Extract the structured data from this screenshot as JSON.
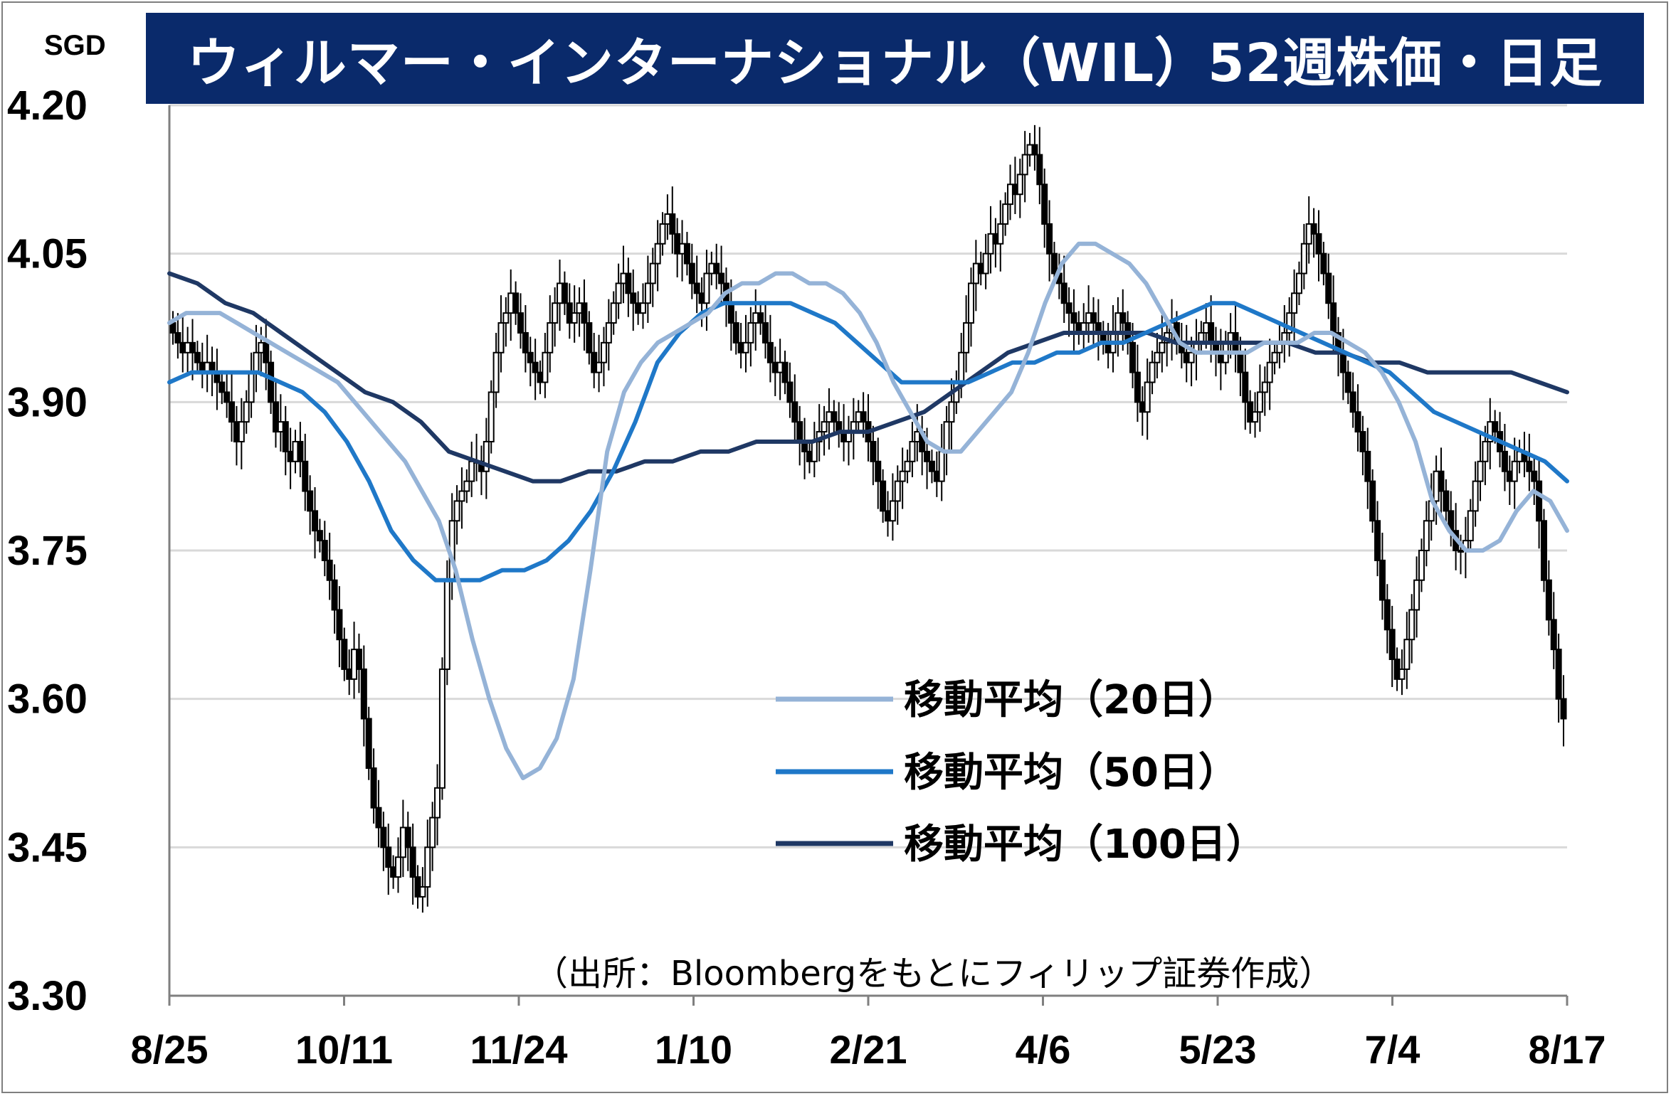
{
  "title": "ウィルマー・インターナショナル（WIL）52週株価・日足",
  "unit": "SGD",
  "source_note": "（出所：Bloombergをもとにフィリップ証券作成）",
  "colors": {
    "title_bg": "#0a2a6b",
    "ma20": "#95b3d7",
    "ma50": "#1f78c8",
    "ma100": "#1f3864",
    "candle": "#000000",
    "grid": "#d9d9d9"
  },
  "chart_data": {
    "type": "candlestick",
    "title": "ウィルマー・インターナショナル（WIL）52週株価・日足",
    "ylabel": "SGD",
    "ylim": [
      3.3,
      4.2
    ],
    "yticks": [
      "4.20",
      "4.05",
      "3.90",
      "3.75",
      "3.60",
      "3.45",
      "3.30"
    ],
    "xticks": [
      "8/25",
      "10/11",
      "11/24",
      "1/10",
      "2/21",
      "4/6",
      "5/23",
      "7/4",
      "8/17"
    ],
    "grid": true,
    "legend_position": "bottom-right",
    "legend": [
      "移動平均（20日）",
      "移動平均（50日）",
      "移動平均（100日）"
    ],
    "close": [
      3.97,
      3.96,
      3.95,
      3.96,
      3.95,
      3.94,
      3.93,
      3.94,
      3.93,
      3.92,
      3.91,
      3.9,
      3.88,
      3.86,
      3.88,
      3.9,
      3.93,
      3.95,
      3.96,
      3.94,
      3.9,
      3.87,
      3.88,
      3.85,
      3.84,
      3.86,
      3.84,
      3.81,
      3.79,
      3.77,
      3.76,
      3.74,
      3.72,
      3.69,
      3.66,
      3.63,
      3.62,
      3.65,
      3.63,
      3.58,
      3.53,
      3.49,
      3.47,
      3.45,
      3.43,
      3.42,
      3.44,
      3.47,
      3.45,
      3.42,
      3.4,
      3.41,
      3.45,
      3.48,
      3.51,
      3.63,
      3.72,
      3.78,
      3.8,
      3.81,
      3.82,
      3.84,
      3.84,
      3.83,
      3.86,
      3.91,
      3.95,
      3.98,
      3.99,
      4.01,
      3.99,
      3.97,
      3.95,
      3.94,
      3.93,
      3.92,
      3.95,
      3.98,
      4.0,
      4.02,
      4.0,
      3.98,
      3.99,
      4.0,
      3.98,
      3.95,
      3.93,
      3.94,
      3.96,
      3.98,
      4.0,
      4.02,
      4.03,
      4.01,
      4.0,
      3.99,
      4.0,
      4.02,
      4.04,
      4.06,
      4.08,
      4.09,
      4.07,
      4.05,
      4.06,
      4.04,
      4.02,
      4.01,
      4.0,
      4.03,
      4.04,
      4.03,
      4.02,
      4.0,
      3.98,
      3.96,
      3.95,
      3.96,
      3.98,
      3.99,
      3.98,
      3.96,
      3.94,
      3.93,
      3.94,
      3.92,
      3.9,
      3.88,
      3.86,
      3.85,
      3.84,
      3.86,
      3.87,
      3.88,
      3.89,
      3.88,
      3.87,
      3.86,
      3.87,
      3.88,
      3.89,
      3.88,
      3.86,
      3.84,
      3.82,
      3.79,
      3.78,
      3.8,
      3.82,
      3.83,
      3.84,
      3.86,
      3.87,
      3.85,
      3.84,
      3.83,
      3.82,
      3.85,
      3.88,
      3.9,
      3.92,
      3.95,
      3.98,
      4.02,
      4.04,
      4.03,
      4.05,
      4.07,
      4.06,
      4.08,
      4.1,
      4.12,
      4.11,
      4.13,
      4.15,
      4.16,
      4.15,
      4.12,
      4.08,
      4.05,
      4.03,
      4.02,
      4.0,
      3.99,
      3.98,
      3.97,
      3.98,
      3.99,
      3.98,
      3.97,
      3.96,
      3.95,
      3.97,
      3.99,
      3.98,
      3.96,
      3.93,
      3.9,
      3.89,
      3.92,
      3.94,
      3.95,
      3.96,
      3.97,
      3.98,
      3.96,
      3.95,
      3.94,
      3.95,
      3.96,
      3.97,
      3.98,
      3.96,
      3.95,
      3.94,
      3.96,
      3.97,
      3.95,
      3.93,
      3.9,
      3.88,
      3.89,
      3.91,
      3.92,
      3.94,
      3.95,
      3.96,
      3.97,
      3.99,
      4.01,
      4.03,
      4.06,
      4.08,
      4.07,
      4.05,
      4.03,
      4.0,
      3.97,
      3.95,
      3.93,
      3.91,
      3.89,
      3.87,
      3.85,
      3.82,
      3.78,
      3.74,
      3.7,
      3.67,
      3.64,
      3.62,
      3.63,
      3.66,
      3.69,
      3.72,
      3.75,
      3.78,
      3.8,
      3.83,
      3.81,
      3.79,
      3.77,
      3.75,
      3.75,
      3.76,
      3.79,
      3.82,
      3.84,
      3.86,
      3.88,
      3.87,
      3.85,
      3.83,
      3.82,
      3.84,
      3.85,
      3.84,
      3.83,
      3.82,
      3.78,
      3.72,
      3.68,
      3.65,
      3.6,
      3.58
    ],
    "ma20": [
      3.98,
      3.99,
      3.99,
      3.99,
      3.98,
      3.97,
      3.96,
      3.95,
      3.94,
      3.93,
      3.92,
      3.9,
      3.88,
      3.86,
      3.84,
      3.81,
      3.78,
      3.73,
      3.66,
      3.6,
      3.55,
      3.52,
      3.53,
      3.56,
      3.62,
      3.73,
      3.85,
      3.91,
      3.94,
      3.96,
      3.97,
      3.98,
      3.99,
      4.01,
      4.02,
      4.02,
      4.03,
      4.03,
      4.02,
      4.02,
      4.01,
      3.99,
      3.96,
      3.92,
      3.89,
      3.86,
      3.85,
      3.85,
      3.87,
      3.89,
      3.91,
      3.95,
      4.0,
      4.04,
      4.06,
      4.06,
      4.05,
      4.04,
      4.02,
      3.99,
      3.96,
      3.95,
      3.95,
      3.95,
      3.95,
      3.96,
      3.96,
      3.96,
      3.97,
      3.97,
      3.96,
      3.95,
      3.93,
      3.9,
      3.86,
      3.8,
      3.77,
      3.75,
      3.75,
      3.76,
      3.79,
      3.81,
      3.8,
      3.77
    ],
    "ma50": [
      3.92,
      3.93,
      3.93,
      3.93,
      3.93,
      3.92,
      3.91,
      3.89,
      3.86,
      3.82,
      3.77,
      3.74,
      3.72,
      3.72,
      3.72,
      3.73,
      3.73,
      3.74,
      3.76,
      3.79,
      3.83,
      3.88,
      3.94,
      3.97,
      3.99,
      4.0,
      4.0,
      4.0,
      4.0,
      3.99,
      3.98,
      3.96,
      3.94,
      3.92,
      3.92,
      3.92,
      3.92,
      3.93,
      3.94,
      3.94,
      3.95,
      3.95,
      3.96,
      3.96,
      3.97,
      3.98,
      3.99,
      4.0,
      4.0,
      3.99,
      3.98,
      3.97,
      3.96,
      3.95,
      3.94,
      3.93,
      3.91,
      3.89,
      3.88,
      3.87,
      3.86,
      3.85,
      3.84,
      3.82
    ],
    "ma100": [
      4.03,
      4.02,
      4.0,
      3.99,
      3.97,
      3.95,
      3.93,
      3.91,
      3.9,
      3.88,
      3.85,
      3.84,
      3.83,
      3.82,
      3.82,
      3.83,
      3.83,
      3.84,
      3.84,
      3.85,
      3.85,
      3.86,
      3.86,
      3.86,
      3.87,
      3.87,
      3.88,
      3.89,
      3.91,
      3.93,
      3.95,
      3.96,
      3.97,
      3.97,
      3.97,
      3.97,
      3.96,
      3.96,
      3.96,
      3.96,
      3.96,
      3.95,
      3.95,
      3.94,
      3.94,
      3.93,
      3.93,
      3.93,
      3.93,
      3.92,
      3.91
    ]
  }
}
